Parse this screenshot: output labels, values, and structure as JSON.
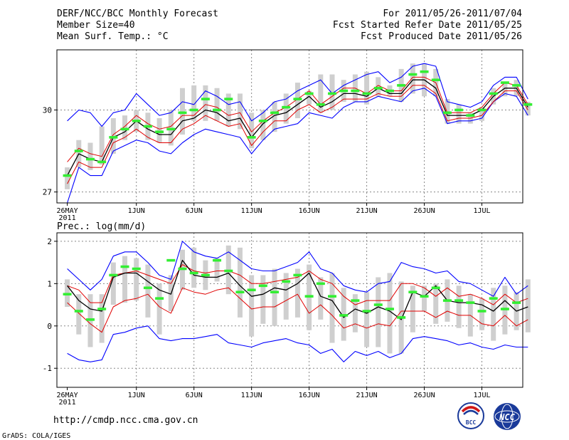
{
  "header": {
    "left": [
      "DERF/NCC/BCC Monthly Forecast",
      "Member Size=40",
      "Mean Surf. Temp.: °C"
    ],
    "right": [
      "For 2011/05/26-2011/07/04",
      "Fcst Started Refer Date 2011/05/25",
      "Fcst Produced Date 2011/05/26"
    ]
  },
  "footer": {
    "url": "http://cmdp.ncc.cma.gov.cn",
    "grads": "GrADS: COLA/IGES",
    "logo_left_text": "BCC",
    "logo_right_text": "NCC"
  },
  "colors": {
    "ensemble_range": "#0000ff",
    "percentile_band": "#e00000",
    "ensemble_mean": "#000000",
    "green_marker": "#33ee33",
    "box": "#cfcfcf",
    "grid": "#888888"
  },
  "chart_data": [
    {
      "type": "line",
      "title": "Mean Surf. Temp.: °C",
      "x_start": "2011-05-26",
      "n_days": 40,
      "xtick_labels": [
        {
          "day": 0,
          "label": "26MAY",
          "sub": "2011"
        },
        {
          "day": 6,
          "label": "1JUN"
        },
        {
          "day": 11,
          "label": "6JUN"
        },
        {
          "day": 16,
          "label": "11JUN"
        },
        {
          "day": 21,
          "label": "16JUN"
        },
        {
          "day": 26,
          "label": "21JUN"
        },
        {
          "day": 31,
          "label": "26JUN"
        },
        {
          "day": 36,
          "label": "1JUL"
        }
      ],
      "yticks": [
        27,
        30
      ],
      "ylim": [
        26.6,
        32.2
      ],
      "series": [
        {
          "name": "ensemble-max",
          "color": "#0000ff",
          "values": [
            29.6,
            30.0,
            29.9,
            29.4,
            29.9,
            30.0,
            30.6,
            30.2,
            29.8,
            29.9,
            30.3,
            30.2,
            30.7,
            30.5,
            30.2,
            30.3,
            29.6,
            29.9,
            30.3,
            30.4,
            30.7,
            30.9,
            31.1,
            30.6,
            30.9,
            31.1,
            31.3,
            31.4,
            31.0,
            31.2,
            31.6,
            31.7,
            31.6,
            30.3,
            30.2,
            30.1,
            30.3,
            30.9,
            31.2,
            31.2,
            30.4
          ]
        },
        {
          "name": "ensemble-min",
          "color": "#0000ff",
          "values": [
            26.6,
            27.9,
            27.6,
            27.6,
            28.5,
            28.7,
            28.9,
            28.8,
            28.5,
            28.4,
            28.8,
            29.1,
            29.3,
            29.2,
            29.1,
            29.0,
            28.4,
            28.9,
            29.3,
            29.4,
            29.5,
            29.9,
            29.8,
            29.7,
            30.1,
            30.3,
            30.3,
            30.5,
            30.4,
            30.3,
            30.7,
            30.8,
            30.5,
            29.5,
            29.6,
            29.6,
            29.7,
            30.3,
            30.6,
            30.5,
            29.8
          ]
        },
        {
          "name": "upper-percentile",
          "color": "#e00000",
          "values": [
            28.1,
            28.6,
            28.4,
            28.3,
            29.1,
            29.4,
            29.8,
            29.5,
            29.3,
            29.4,
            29.8,
            29.8,
            30.2,
            30.1,
            29.8,
            29.9,
            29.2,
            29.6,
            29.9,
            30.1,
            30.4,
            30.7,
            30.2,
            30.5,
            30.8,
            30.8,
            30.6,
            30.9,
            30.7,
            30.7,
            31.2,
            31.2,
            31.0,
            29.9,
            29.9,
            29.9,
            30.1,
            30.6,
            31.0,
            30.9,
            30.2
          ]
        },
        {
          "name": "lower-percentile",
          "color": "#e00000",
          "values": [
            27.3,
            28.1,
            27.9,
            27.9,
            28.8,
            29.0,
            29.3,
            29.0,
            28.8,
            28.8,
            29.3,
            29.5,
            29.8,
            29.6,
            29.4,
            29.5,
            28.7,
            29.2,
            29.6,
            29.6,
            30.0,
            30.2,
            29.9,
            30.1,
            30.4,
            30.4,
            30.4,
            30.6,
            30.5,
            30.5,
            30.9,
            30.9,
            30.6,
            29.6,
            29.7,
            29.7,
            29.8,
            30.3,
            30.7,
            30.7,
            30.0
          ]
        },
        {
          "name": "ensemble-mean",
          "color": "#000000",
          "values": [
            27.6,
            28.4,
            28.2,
            28.1,
            29.0,
            29.2,
            29.6,
            29.3,
            29.1,
            29.1,
            29.6,
            29.7,
            30.0,
            29.9,
            29.6,
            29.7,
            29.0,
            29.5,
            29.8,
            29.9,
            30.2,
            30.5,
            30.1,
            30.3,
            30.6,
            30.6,
            30.5,
            30.8,
            30.6,
            30.6,
            31.1,
            31.1,
            30.8,
            29.8,
            29.8,
            29.8,
            30.0,
            30.5,
            30.8,
            30.8,
            30.1
          ]
        },
        {
          "name": "green-marker",
          "color": "#33ee33",
          "values": [
            27.6,
            28.5,
            28.2,
            28.1,
            29.0,
            29.3,
            29.6,
            29.4,
            29.2,
            29.3,
            29.9,
            30.0,
            30.4,
            30.0,
            30.4,
            null,
            29.0,
            29.6,
            29.9,
            30.1,
            30.4,
            30.6,
            30.2,
            30.6,
            30.7,
            30.7,
            30.6,
            30.8,
            30.7,
            30.9,
            31.3,
            31.4,
            31.1,
            29.9,
            30.0,
            29.8,
            30.0,
            30.6,
            31.0,
            30.9,
            30.2
          ]
        },
        {
          "name": "box-high",
          "color": "#cfcfcf",
          "values": [
            27.9,
            28.9,
            28.8,
            29.4,
            29.7,
            29.8,
            30.0,
            29.9,
            29.7,
            30.0,
            30.8,
            30.9,
            30.9,
            30.8,
            30.6,
            30.6,
            29.9,
            30.0,
            30.3,
            30.6,
            31.0,
            30.7,
            31.3,
            31.3,
            31.1,
            31.3,
            31.4,
            31.2,
            30.9,
            31.5,
            31.7,
            31.7,
            31.5,
            30.4,
            30.2,
            29.9,
            30.1,
            30.8,
            31.0,
            31.1,
            30.3
          ]
        },
        {
          "name": "box-low",
          "color": "#cfcfcf",
          "values": [
            27.1,
            27.9,
            27.8,
            28.0,
            28.4,
            28.9,
            29.2,
            28.9,
            28.8,
            28.7,
            29.1,
            29.6,
            29.6,
            29.6,
            29.4,
            29.3,
            28.6,
            28.9,
            29.2,
            29.5,
            29.7,
            30.2,
            29.9,
            30.0,
            30.3,
            30.3,
            30.2,
            30.5,
            30.5,
            30.3,
            30.6,
            30.5,
            30.5,
            29.5,
            29.5,
            29.5,
            29.6,
            30.2,
            30.5,
            30.5,
            29.8
          ]
        }
      ]
    },
    {
      "type": "line",
      "title": "Prec.: log(mm/d)",
      "x_start": "2011-05-26",
      "n_days": 40,
      "xtick_labels": [
        {
          "day": 0,
          "label": "26MAY",
          "sub": "2011"
        },
        {
          "day": 6,
          "label": "1JUN"
        },
        {
          "day": 11,
          "label": "6JUN"
        },
        {
          "day": 16,
          "label": "11JUN"
        },
        {
          "day": 21,
          "label": "16JUN"
        },
        {
          "day": 26,
          "label": "21JUN"
        },
        {
          "day": 31,
          "label": "26JUN"
        },
        {
          "day": 36,
          "label": "1JUL"
        }
      ],
      "yticks": [
        -1,
        0,
        1,
        2
      ],
      "ylim": [
        -1.45,
        2.2
      ],
      "series": [
        {
          "name": "ensemble-max",
          "color": "#0000ff",
          "values": [
            1.35,
            1.1,
            0.85,
            1.1,
            1.65,
            1.75,
            1.75,
            1.5,
            1.2,
            1.1,
            2.0,
            1.75,
            1.65,
            1.6,
            1.75,
            1.55,
            1.35,
            1.3,
            1.3,
            1.4,
            1.5,
            1.75,
            1.35,
            1.25,
            0.95,
            0.85,
            0.8,
            1.0,
            1.05,
            1.5,
            1.4,
            1.35,
            1.25,
            1.3,
            1.05,
            1.0,
            0.85,
            0.7,
            1.15,
            0.75,
            0.95
          ]
        },
        {
          "name": "ensemble-min",
          "color": "#0000ff",
          "values": [
            -0.65,
            -0.8,
            -0.85,
            -0.8,
            -0.2,
            -0.15,
            -0.05,
            0.0,
            -0.3,
            -0.35,
            -0.3,
            -0.3,
            -0.25,
            -0.2,
            -0.4,
            -0.45,
            -0.5,
            -0.4,
            -0.35,
            -0.3,
            -0.4,
            -0.45,
            -0.65,
            -0.55,
            -0.85,
            -0.6,
            -0.7,
            -0.6,
            -0.75,
            -0.65,
            -0.3,
            -0.25,
            -0.3,
            -0.35,
            -0.45,
            -0.4,
            -0.5,
            -0.55,
            -0.45,
            -0.5,
            -0.5
          ]
        },
        {
          "name": "upper-percentile",
          "color": "#e00000",
          "values": [
            0.95,
            0.85,
            0.55,
            0.55,
            1.2,
            1.25,
            1.3,
            1.2,
            1.1,
            1.0,
            1.45,
            1.3,
            1.25,
            1.3,
            1.3,
            1.2,
            1.0,
            1.0,
            1.05,
            1.1,
            1.15,
            1.3,
            1.1,
            1.0,
            0.7,
            0.5,
            0.6,
            0.6,
            0.6,
            1.0,
            1.0,
            0.9,
            0.7,
            0.9,
            0.7,
            0.75,
            0.65,
            0.5,
            0.75,
            0.55,
            0.65
          ]
        },
        {
          "name": "lower-percentile",
          "color": "#e00000",
          "values": [
            0.55,
            0.3,
            0.05,
            -0.15,
            0.45,
            0.6,
            0.65,
            0.75,
            0.45,
            0.3,
            0.9,
            0.8,
            0.75,
            0.85,
            0.9,
            0.65,
            0.4,
            0.45,
            0.45,
            0.6,
            0.75,
            0.3,
            0.5,
            0.25,
            -0.05,
            0.05,
            -0.05,
            0.05,
            0.0,
            0.35,
            0.35,
            0.35,
            0.2,
            0.35,
            0.25,
            0.25,
            0.05,
            0.0,
            0.25,
            0.0,
            0.15
          ]
        },
        {
          "name": "ensemble-mean",
          "color": "#000000",
          "values": [
            0.95,
            0.6,
            0.4,
            0.35,
            1.15,
            1.25,
            1.25,
            1.05,
            0.85,
            0.75,
            1.55,
            1.2,
            1.15,
            1.15,
            1.25,
            0.95,
            0.7,
            0.75,
            0.9,
            0.85,
            1.0,
            1.25,
            0.7,
            0.6,
            0.2,
            0.4,
            0.3,
            0.45,
            0.35,
            0.15,
            0.8,
            0.7,
            0.95,
            0.6,
            0.55,
            0.55,
            0.5,
            0.35,
            0.6,
            0.35,
            0.45
          ]
        },
        {
          "name": "green-marker",
          "color": "#33ee33",
          "values": [
            0.75,
            0.35,
            0.15,
            0.4,
            1.2,
            1.4,
            1.35,
            0.9,
            0.65,
            1.55,
            1.35,
            1.25,
            1.2,
            1.55,
            1.3,
            0.8,
            0.85,
            0.95,
            0.8,
            1.05,
            1.2,
            0.7,
            1.0,
            0.7,
            0.25,
            0.6,
            0.35,
            0.5,
            0.4,
            0.2,
            0.8,
            0.7,
            0.9,
            0.6,
            0.6,
            0.55,
            0.35,
            0.65,
            0.4,
            0.55,
            null
          ]
        },
        {
          "name": "box-high",
          "color": "#cfcfcf",
          "values": [
            1.1,
            0.75,
            0.75,
            0.75,
            1.5,
            1.65,
            1.6,
            1.45,
            1.0,
            1.2,
            1.8,
            1.85,
            1.55,
            1.6,
            1.9,
            1.85,
            1.2,
            1.2,
            1.35,
            1.25,
            1.35,
            1.45,
            1.15,
            1.25,
            0.9,
            0.75,
            0.8,
            1.15,
            1.25,
            1.05,
            0.95,
            0.95,
            1.0,
            1.1,
            0.95,
            0.75,
            0.65,
            0.9,
            0.95,
            0.8,
            1.1
          ]
        },
        {
          "name": "box-low",
          "color": "#cfcfcf",
          "values": [
            0.45,
            -0.2,
            -0.5,
            -0.4,
            0.5,
            0.55,
            0.6,
            0.2,
            -0.2,
            0.35,
            0.85,
            0.9,
            0.85,
            1.05,
            0.75,
            0.2,
            -0.25,
            0.05,
            0.0,
            0.15,
            0.2,
            -0.1,
            0.15,
            -0.4,
            -0.35,
            -0.15,
            -0.5,
            -0.5,
            -0.65,
            -0.65,
            -0.15,
            0.35,
            0.05,
            0.1,
            -0.05,
            -0.25,
            -0.1,
            -0.35,
            -0.2,
            -0.1,
            -0.15
          ]
        }
      ]
    }
  ]
}
